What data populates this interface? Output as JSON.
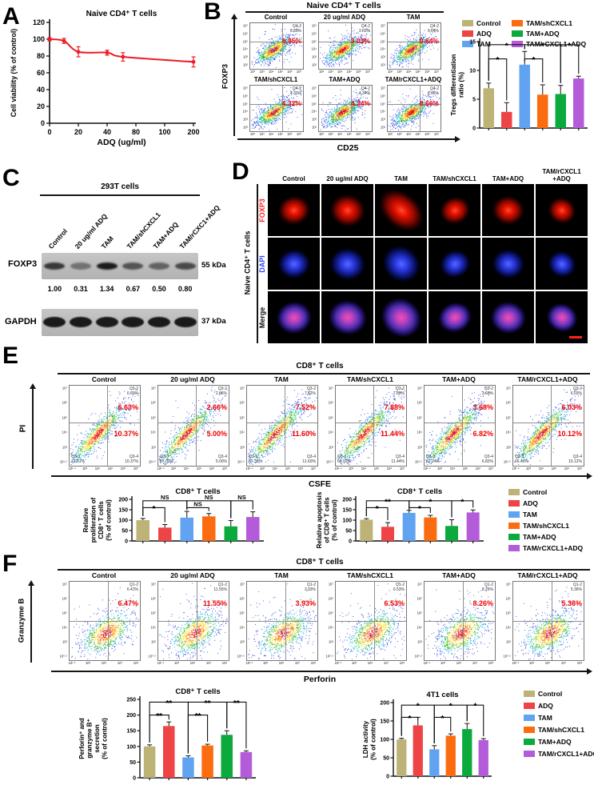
{
  "figure": {
    "groups": [
      "Control",
      "ADQ",
      "TAM",
      "TAM/shCXCL1",
      "TAM+ADQ",
      "TAM/rCXCL1+ADQ"
    ],
    "group_colors": [
      "#BEB377",
      "#EF4446",
      "#61A3F0",
      "#FB6B10",
      "#0AAA3C",
      "#B35BD9"
    ],
    "accent_red": "#F00000"
  },
  "chart_data": [
    {
      "id": "A",
      "type": "line",
      "title": "Naive CD4⁺ T cells",
      "xlabel": "ADQ (ug/ml)",
      "ylabel": "Cell viability (% of control)",
      "x_tick_labels": [
        "0",
        "20",
        "40",
        "80",
        "100",
        "200"
      ],
      "y_ticks": [
        0,
        20,
        40,
        60,
        80,
        100,
        120
      ],
      "ylim": [
        0,
        120
      ],
      "color": "#ED1C24",
      "points": [
        {
          "x": 0,
          "xf": 0.0,
          "y": 100,
          "err": 2
        },
        {
          "x": 10,
          "xf": 0.1,
          "y": 98,
          "err": 3
        },
        {
          "x": 20,
          "xf": 0.2,
          "y": 85,
          "err": 6
        },
        {
          "x": 40,
          "xf": 0.4,
          "y": 84,
          "err": 3
        },
        {
          "x": 60,
          "xf": 0.51,
          "y": 79,
          "err": 5
        },
        {
          "x": 200,
          "xf": 1.0,
          "y": 73,
          "err": 6
        }
      ]
    },
    {
      "id": "B_tregs",
      "type": "bar",
      "title": "",
      "ylabel_lines": [
        "Tregs differentiation",
        "ratio (%)"
      ],
      "categories": [
        "Control",
        "ADQ",
        "TAM",
        "TAM/shCXCL1",
        "TAM+ADQ",
        "TAM/rCXCL1+ADQ"
      ],
      "values": [
        6.9,
        2.8,
        11.0,
        5.8,
        5.9,
        8.6
      ],
      "errors": [
        0.9,
        1.6,
        2.3,
        1.7,
        1.5,
        0.4
      ],
      "ylim": [
        0,
        15
      ],
      "y_ticks": [
        0,
        5,
        10,
        15
      ],
      "sig": [
        {
          "a": 0,
          "b": 1,
          "label": "*",
          "lv": 1
        },
        {
          "a": 0,
          "b": 2,
          "label": "*",
          "lv": 2
        },
        {
          "a": 2,
          "b": 3,
          "label": "*",
          "lv": 1
        },
        {
          "a": 2,
          "b": 4,
          "label": "*",
          "lv": 2
        },
        {
          "a": 4,
          "b": 5,
          "label": "*",
          "lv": 2
        }
      ]
    },
    {
      "id": "E_prolif",
      "type": "bar",
      "title": "CD8⁺ T cells",
      "ylabel_lines": [
        "Relative",
        "proliferation of",
        "CD8⁺ T cells",
        "(% of control)"
      ],
      "categories": [
        "Control",
        "ADQ",
        "TAM",
        "TAM/shCXCL1",
        "TAM+ADQ",
        "TAM/rCXCL1+ADQ"
      ],
      "values": [
        100,
        64,
        112,
        118,
        70,
        115
      ],
      "errors": [
        8,
        15,
        30,
        14,
        28,
        25
      ],
      "ylim": [
        0,
        200
      ],
      "y_ticks": [
        0,
        50,
        100,
        150,
        200
      ],
      "sig": [
        {
          "a": 0,
          "b": 1,
          "label": "*",
          "lv": 1
        },
        {
          "a": 0,
          "b": 2,
          "label": "NS",
          "lv": 2
        },
        {
          "a": 2,
          "b": 3,
          "label": "NS",
          "lv": 1
        },
        {
          "a": 2,
          "b": 4,
          "label": "NS",
          "lv": 2
        },
        {
          "a": 4,
          "b": 5,
          "label": "NS",
          "lv": 2
        }
      ]
    },
    {
      "id": "E_apop",
      "type": "bar",
      "title": "CD8⁺ T cells",
      "ylabel_lines": [
        "Relative apoptosis",
        "of CD8⁺ T cells",
        "(% of control)"
      ],
      "categories": [
        "Control",
        "ADQ",
        "TAM",
        "TAM/shCXCL1",
        "TAM+ADQ",
        "TAM/rCXCL1+ADQ"
      ],
      "values": [
        102,
        68,
        135,
        113,
        72,
        137
      ],
      "errors": [
        5,
        20,
        12,
        10,
        30,
        12
      ],
      "ylim": [
        0,
        200
      ],
      "y_ticks": [
        0,
        50,
        100,
        150,
        200
      ],
      "sig": [
        {
          "a": 0,
          "b": 1,
          "label": "*",
          "lv": 1
        },
        {
          "a": 0,
          "b": 2,
          "label": "**",
          "lv": 2
        },
        {
          "a": 2,
          "b": 3,
          "label": "*",
          "lv": 1
        },
        {
          "a": 2,
          "b": 4,
          "label": "*",
          "lv": 2
        },
        {
          "a": 4,
          "b": 5,
          "label": "*",
          "lv": 2
        }
      ]
    },
    {
      "id": "F_secr",
      "type": "bar",
      "title": "CD8⁺ T cells",
      "ylabel_lines": [
        "Perforin⁺ and",
        "granzyme B⁺",
        "secretion",
        "(% of control)"
      ],
      "categories": [
        "Control",
        "ADQ",
        "TAM",
        "TAM/shCXCL1",
        "TAM+ADQ",
        "TAM/rCXCL1+ADQ"
      ],
      "values": [
        100,
        165,
        65,
        103,
        137,
        82
      ],
      "errors": [
        5,
        13,
        5,
        4,
        13,
        4
      ],
      "ylim": [
        0,
        250
      ],
      "y_ticks": [
        0,
        50,
        100,
        150,
        200,
        250
      ],
      "sig": [
        {
          "a": 0,
          "b": 1,
          "label": "**",
          "lv": 1
        },
        {
          "a": 0,
          "b": 2,
          "label": "**",
          "lv": 2
        },
        {
          "a": 2,
          "b": 3,
          "label": "**",
          "lv": 1
        },
        {
          "a": 2,
          "b": 4,
          "label": "**",
          "lv": 2
        },
        {
          "a": 4,
          "b": 5,
          "label": "**",
          "lv": 2
        }
      ]
    },
    {
      "id": "F_ldh",
      "type": "bar",
      "title": "4T1 cells",
      "ylabel_lines": [
        "LDH activity",
        "(% of control)"
      ],
      "categories": [
        "Control",
        "ADQ",
        "TAM",
        "TAM/shCXCL1",
        "TAM+ADQ",
        "TAM/rCXCL1+ADQ"
      ],
      "values": [
        100,
        138,
        73,
        110,
        128,
        98
      ],
      "errors": [
        3,
        22,
        10,
        5,
        15,
        4
      ],
      "ylim": [
        0,
        200
      ],
      "y_ticks": [
        0,
        50,
        100,
        150,
        200
      ],
      "sig": [
        {
          "a": 0,
          "b": 1,
          "label": "*",
          "lv": 1
        },
        {
          "a": 0,
          "b": 2,
          "label": "*",
          "lv": 2
        },
        {
          "a": 2,
          "b": 3,
          "label": "*",
          "lv": 1
        },
        {
          "a": 2,
          "b": 4,
          "label": "*",
          "lv": 2
        },
        {
          "a": 4,
          "b": 5,
          "label": "*",
          "lv": 2
        }
      ]
    }
  ],
  "panelA": {
    "label": "A"
  },
  "panelB": {
    "label": "B",
    "header": "Naive CD4⁺ T cells",
    "xaxis": "CD25",
    "yaxis": "FOXP3",
    "x_ticks": [
      "10²",
      "10³",
      "10⁴",
      "10⁵",
      "10⁶",
      "10⁷"
    ],
    "y_ticks": [
      "10⁷",
      "10⁶",
      "10⁵",
      "10⁴",
      "10³",
      "10²"
    ],
    "plots": [
      {
        "title": "Control",
        "quad": "Q4-2",
        "quad_pct": "6.85%",
        "pct": "6.85%"
      },
      {
        "title": "20 ug/ml ADQ",
        "quad": "Q4-2",
        "quad_pct": "3.03%",
        "pct": "3.03%"
      },
      {
        "title": "TAM",
        "quad": "Q4-2",
        "quad_pct": "9.64%",
        "pct": "9.64%"
      },
      {
        "title": "TAM/shCXCL1",
        "quad": "Q4-2",
        "quad_pct": "4.32%",
        "pct": "4.32%"
      },
      {
        "title": "TAM+ADQ",
        "quad": "Q4-2",
        "quad_pct": "4.34%",
        "pct": "4.34%"
      },
      {
        "title": "TAM/rCXCL1+ADQ",
        "quad": "Q4-2",
        "quad_pct": "8.66%",
        "pct": "8.66%"
      }
    ]
  },
  "panelC": {
    "label": "C",
    "header": "293T cells",
    "lanes": [
      "Control",
      "20 ug/ml ADQ",
      "TAM",
      "TAM/shCXCL1",
      "TAM+ADQ",
      "TAM/rCXC1+ADQ"
    ],
    "bands": [
      {
        "protein": "FOXP3",
        "size": "55 kDa"
      },
      {
        "protein": "GAPDH",
        "size": "37 kDa"
      }
    ],
    "values": [
      "1.00",
      "0.31",
      "1.34",
      "0.67",
      "0.50",
      "0.80"
    ]
  },
  "panelD": {
    "label": "D",
    "side_label": "Naive CD4⁺ T cells",
    "columns": [
      "Control",
      "20 ug/ml ADQ",
      "TAM",
      "TAM/shCXCL1",
      "TAM+ADQ",
      "TAM/rCXCL1\n+ADQ"
    ],
    "rows": [
      "FOXP3",
      "DAPI",
      "Merge"
    ],
    "row_colors": [
      "#FF2222",
      "#3344FF",
      "#111111"
    ]
  },
  "panelE": {
    "label": "E",
    "header": "CD8⁺ T cells",
    "xaxis": "CSFE",
    "yaxis": "PI",
    "x_ticks": [
      "10¹·⁴",
      "10³",
      "10⁴",
      "10⁵",
      "10⁶",
      "10⁷"
    ],
    "y_ticks": [
      "10⁷",
      "10⁶",
      "10⁵",
      "10⁴",
      "10³",
      "10¹·⁶"
    ],
    "plots": [
      {
        "title": "Control",
        "q2": "Q3-2",
        "q2_pct": "6.63%",
        "pct_top": "6.63%",
        "pct_bottom": "10.37%",
        "q3": "Q3-3",
        "q3_pct": "72.51%",
        "q4": "Q3-4",
        "q4_pct": "10.37%"
      },
      {
        "title": "20 ug/ml ADQ",
        "q2": "Q3-2",
        "q2_pct": "2.66%",
        "pct_top": "2.66%",
        "pct_bottom": "5.00%",
        "q3": "Q3-3",
        "q3_pct": "87.02%",
        "q4": "Q3-4",
        "q4_pct": "5.00%"
      },
      {
        "title": "TAM",
        "q2": "Q3-2",
        "q2_pct": "7.52%",
        "pct_top": "7.52%",
        "pct_bottom": "11.60%",
        "q3": "Q3-3",
        "q3_pct": "67.39%",
        "q4": "Q3-4",
        "q4_pct": "11.60%"
      },
      {
        "title": "TAM/shCXCL1",
        "q2": "Q3-2",
        "q2_pct": "7.88%",
        "pct_top": "7.88%",
        "pct_bottom": "11.44%",
        "q3": "Q3-3",
        "q3_pct": "68.92%",
        "q4": "Q3-4",
        "q4_pct": "11.44%"
      },
      {
        "title": "TAM+ADQ",
        "q2": "Q3-2",
        "q2_pct": "3.68%",
        "pct_top": "3.68%",
        "pct_bottom": "6.82%",
        "q3": "Q3-3",
        "q3_pct": "82.24%",
        "q4": "Q3-4",
        "q4_pct": "6.82%"
      },
      {
        "title": "TAM/rCXCL1+ADQ",
        "q2": "Q3-2",
        "q2_pct": "6.03%",
        "pct_top": "6.03%",
        "pct_bottom": "10.12%",
        "q3": "Q3-3",
        "q3_pct": "66.40%",
        "q4": "Q3-4",
        "q4_pct": "10.12%"
      }
    ]
  },
  "panelF": {
    "label": "F",
    "header": "CD8⁺ T cells",
    "xaxis": "Perforin",
    "yaxis": "Granzyme B",
    "x_ticks": [
      "10¹·¹",
      "10³",
      "10⁵",
      "10⁷",
      "10⁸"
    ],
    "y_ticks": [
      "10⁷",
      "10⁶",
      "10⁵",
      "10⁴",
      "10³",
      "10⁰·⁶"
    ],
    "plots": [
      {
        "title": "Control",
        "quad": "Q1-2",
        "quad_pct": "6.47%",
        "pct": "6.47%"
      },
      {
        "title": "20 ug/ml ADQ",
        "quad": "Q1-2",
        "quad_pct": "11.55%",
        "pct": "11.55%"
      },
      {
        "title": "TAM",
        "quad": "Q1-2",
        "quad_pct": "3.93%",
        "pct": "3.93%"
      },
      {
        "title": "TAM/shCXCL1",
        "quad": "Q1-2",
        "quad_pct": "6.53%",
        "pct": "6.53%"
      },
      {
        "title": "TAM+ADQ",
        "quad": "Q1-2",
        "quad_pct": "8.26%",
        "pct": "8.26%"
      },
      {
        "title": "TAM/rCXCL1+ADQ",
        "quad": "Q1-2",
        "quad_pct": "5.36%",
        "pct": "5.36%"
      }
    ]
  }
}
